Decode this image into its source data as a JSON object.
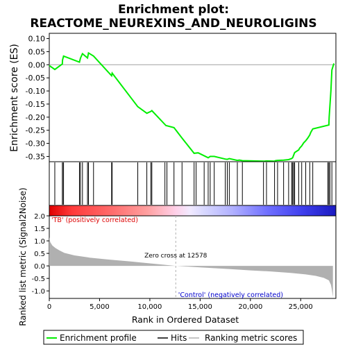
{
  "chart_data": [
    {
      "type": "line",
      "title_line1": "Enrichment plot:",
      "title_line2": "REACTOME_NEUREXINS_AND_NEUROLIGINS",
      "ylabel": "Enrichment score (ES)",
      "xlim": [
        0,
        28500
      ],
      "ylim": [
        -0.37,
        0.12
      ],
      "yticks": [
        0.1,
        0.05,
        0.0,
        -0.05,
        -0.1,
        -0.15,
        -0.2,
        -0.25,
        -0.3,
        -0.35
      ],
      "ytick_labels": [
        "0.10",
        "0.05",
        "0.00",
        "-0.05",
        "-0.10",
        "-0.15",
        "-0.20",
        "-0.25",
        "-0.30",
        "-0.35"
      ],
      "series": [
        {
          "name": "Enrichment profile",
          "color": "#00ee00",
          "x": [
            0,
            550,
            1300,
            1320,
            1420,
            3000,
            3100,
            3300,
            3800,
            3900,
            4400,
            6200,
            6250,
            8800,
            9700,
            10100,
            10200,
            11600,
            12400,
            13200,
            14400,
            14800,
            15800,
            16000,
            16400,
            17500,
            17700,
            17900,
            18700,
            18900,
            19200,
            21400,
            21600,
            22400,
            22500,
            22700,
            23300,
            23800,
            24100,
            24200,
            24300,
            24400,
            24800,
            24900,
            25100,
            25300,
            25500,
            25700,
            25900,
            26000,
            26200,
            27800,
            27810,
            27830,
            27900,
            28000,
            28100,
            28300
          ],
          "values": [
            -0.003,
            -0.018,
            0.003,
            0.018,
            0.033,
            0.01,
            0.025,
            0.042,
            0.026,
            0.045,
            0.033,
            -0.042,
            -0.032,
            -0.16,
            -0.185,
            -0.178,
            -0.175,
            -0.232,
            -0.24,
            -0.28,
            -0.338,
            -0.336,
            -0.355,
            -0.35,
            -0.35,
            -0.36,
            -0.361,
            -0.358,
            -0.365,
            -0.364,
            -0.366,
            -0.368,
            -0.367,
            -0.368,
            -0.366,
            -0.365,
            -0.364,
            -0.362,
            -0.358,
            -0.355,
            -0.345,
            -0.335,
            -0.325,
            -0.318,
            -0.31,
            -0.298,
            -0.29,
            -0.28,
            -0.268,
            -0.258,
            -0.245,
            -0.23,
            -0.22,
            -0.2,
            -0.16,
            -0.1,
            -0.02,
            0.005
          ]
        }
      ],
      "hits_x": [
        550,
        1300,
        1320,
        1420,
        3000,
        3100,
        3300,
        3800,
        3900,
        4400,
        6200,
        6250,
        8800,
        9700,
        10100,
        10200,
        11500,
        11700,
        12400,
        13200,
        14400,
        14600,
        15400,
        15800,
        16000,
        16400,
        17500,
        17700,
        17900,
        18700,
        19200,
        21300,
        21600,
        22400,
        22700,
        23300,
        23800,
        24100,
        24200,
        24300,
        24400,
        24800,
        25100,
        25500,
        25900,
        26200,
        27700,
        27800,
        27900,
        28100
      ],
      "legend": [
        "Enrichment profile",
        "Hits",
        "Ranking metric scores"
      ]
    },
    {
      "type": "area",
      "ylabel": "Ranked list metric (Signal2Noise)",
      "xlabel": "Rank in Ordered Dataset",
      "xlim": [
        0,
        28500
      ],
      "ylim": [
        -1.3,
        2.0
      ],
      "yticks": [
        2.0,
        1.5,
        1.0,
        0.5,
        0.0,
        -0.5,
        -1.0
      ],
      "ytick_labels": [
        "2.0",
        "1.5",
        "1.0",
        "0.5",
        "0.0",
        "-0.5",
        "-1.0"
      ],
      "xticks": [
        0,
        5000,
        10000,
        15000,
        20000,
        25000
      ],
      "xtick_labels": [
        "0",
        "5,000",
        "10,000",
        "15,000",
        "20,000",
        "25,000"
      ],
      "series": [
        {
          "name": "Ranking metric scores",
          "color": "#b0b0b0",
          "x": [
            0,
            100,
            300,
            600,
            1000,
            1500,
            2500,
            4000,
            6000,
            8000,
            10000,
            12578,
            15000,
            18000,
            20000,
            22000,
            24000,
            25500,
            26500,
            27300,
            27800,
            28000,
            28100,
            28200
          ],
          "values": [
            1.15,
            0.95,
            0.82,
            0.72,
            0.62,
            0.52,
            0.42,
            0.33,
            0.25,
            0.18,
            0.1,
            0.0,
            -0.06,
            -0.13,
            -0.18,
            -0.22,
            -0.28,
            -0.34,
            -0.4,
            -0.48,
            -0.58,
            -0.75,
            -0.95,
            -1.25
          ]
        }
      ],
      "zero_cross_label": "Zero cross at 12578",
      "zero_cross_x": 12578,
      "positive_label": "'TB' (positively correlated)",
      "negative_label": "'Control' (negatively correlated)",
      "positive_color": "#dd0000",
      "negative_color": "#0000cc"
    }
  ]
}
